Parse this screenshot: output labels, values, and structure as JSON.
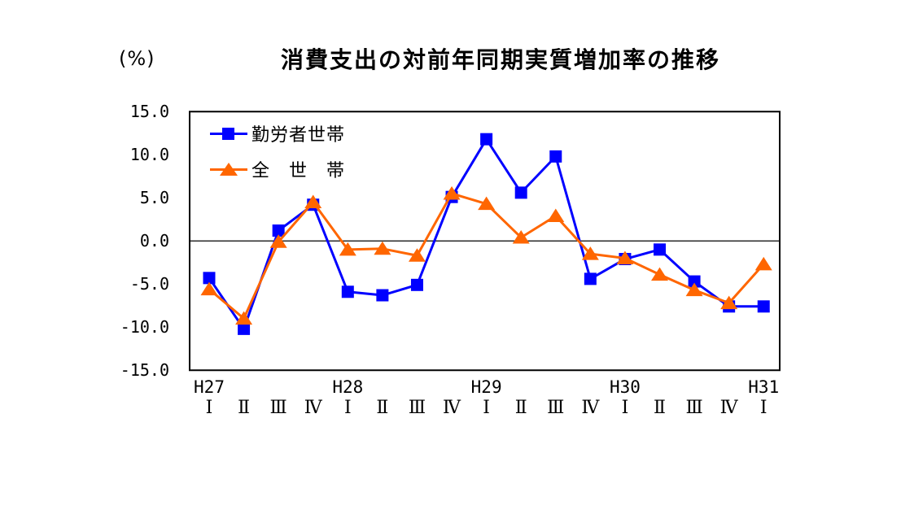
{
  "chart": {
    "title": "消費支出の対前年同期実質増加率の推移",
    "unit_label": "(%)"
  },
  "chart_data": {
    "type": "line",
    "title": "消費支出の対前年同期実質増加率の推移",
    "ylabel": "(%)",
    "ylim": [
      -15.0,
      15.0
    ],
    "ytick_interval": 5.0,
    "ytick_values": [
      15,
      10,
      5,
      0,
      -5,
      -10,
      -15
    ],
    "ytick_labels": [
      "15.0",
      "10.0",
      "5.0",
      "0.0",
      "-5.0",
      "-10.0",
      "-15.0"
    ],
    "grid": false,
    "zero_line": true,
    "legend_position": "inside-top-left",
    "axis_color": "#000000",
    "background_color": "#ffffff",
    "categories": [
      "H27-Ⅰ",
      "H27-Ⅱ",
      "H27-Ⅲ",
      "H27-Ⅳ",
      "H28-Ⅰ",
      "H28-Ⅱ",
      "H28-Ⅲ",
      "H28-Ⅳ",
      "H29-Ⅰ",
      "H29-Ⅱ",
      "H29-Ⅲ",
      "H29-Ⅳ",
      "H30-Ⅰ",
      "H30-Ⅱ",
      "H30-Ⅲ",
      "H30-Ⅳ",
      "H31-Ⅰ"
    ],
    "x_quarter_labels": [
      "Ⅰ",
      "Ⅱ",
      "Ⅲ",
      "Ⅳ",
      "Ⅰ",
      "Ⅱ",
      "Ⅲ",
      "Ⅳ",
      "Ⅰ",
      "Ⅱ",
      "Ⅲ",
      "Ⅳ",
      "Ⅰ",
      "Ⅱ",
      "Ⅲ",
      "Ⅳ",
      "Ⅰ"
    ],
    "x_year_labels": [
      {
        "label": "H27",
        "index": 0
      },
      {
        "label": "H28",
        "index": 4
      },
      {
        "label": "H29",
        "index": 8
      },
      {
        "label": "H30",
        "index": 12
      },
      {
        "label": "H31",
        "index": 16
      }
    ],
    "series": [
      {
        "name": "勤労者世帯",
        "marker": "square",
        "color": "#0000ff",
        "values": [
          -4.3,
          -10.2,
          1.2,
          4.2,
          -5.9,
          -6.3,
          -5.1,
          5.1,
          11.8,
          5.6,
          9.8,
          -4.4,
          -2.1,
          -1.0,
          -4.7,
          -7.6,
          -7.6
        ]
      },
      {
        "name": "全　世　帯",
        "marker": "triangle",
        "color": "#ff6600",
        "values": [
          -5.6,
          -9.0,
          -0.1,
          4.5,
          -1.0,
          -0.9,
          -1.7,
          5.5,
          4.3,
          0.4,
          2.9,
          -1.5,
          -2.0,
          -3.9,
          -5.7,
          -7.2,
          -2.7
        ]
      }
    ]
  }
}
